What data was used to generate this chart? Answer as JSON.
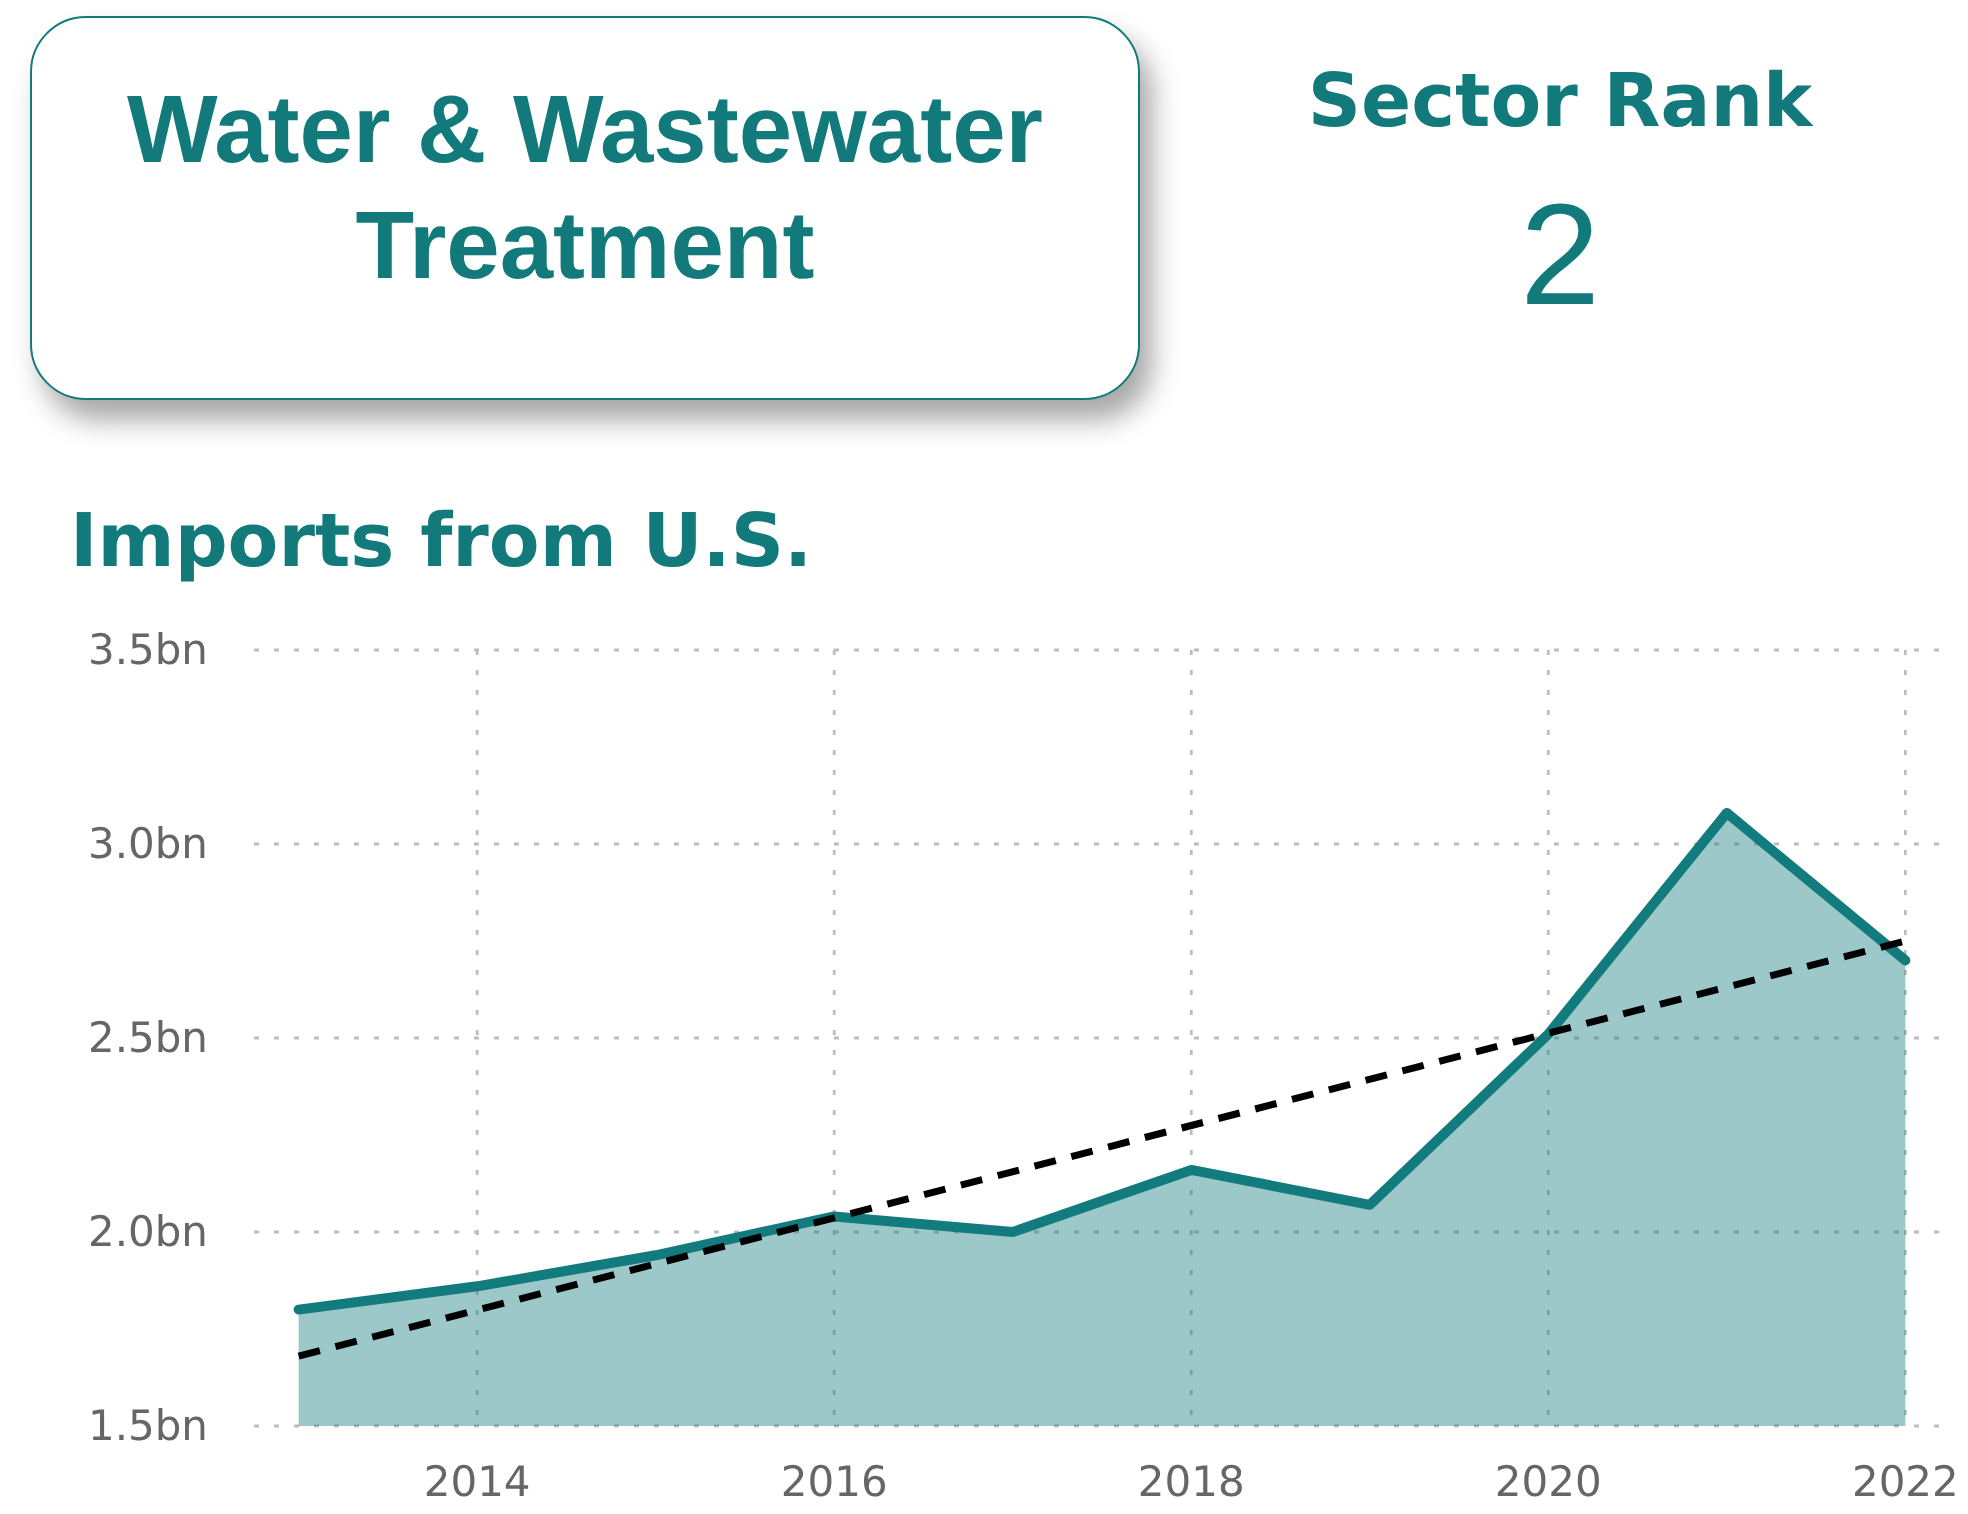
{
  "chart_data": [
    {
      "type": "other",
      "title": "Water & Wastewater Treatment"
    },
    {
      "type": "other",
      "title": "Sector Rank",
      "values": [
        2
      ],
      "data_labels": true
    },
    {
      "type": "area",
      "title": "Imports from U.S.",
      "x": [
        2013,
        2014,
        2015,
        2016,
        2017,
        2018,
        2019,
        2020,
        2021,
        2022
      ],
      "series": [
        {
          "type": "area",
          "color": "#127b7e",
          "values": [
            1.8,
            1.86,
            1.94,
            2.04,
            2.0,
            2.16,
            2.07,
            2.51,
            3.08,
            2.7
          ]
        },
        {
          "type": "line",
          "color": "#000000",
          "line_style": "dashed",
          "x": [
            2013,
            2022
          ],
          "values": [
            1.68,
            2.75
          ]
        }
      ],
      "xlim": [
        2012.75,
        2022.25
      ],
      "xticks": [
        2014,
        2016,
        2018,
        2020,
        2022
      ],
      "ylim": [
        1.5,
        3.5
      ],
      "yticks": [
        {
          "value": 1.5,
          "label": "1.5bn"
        },
        {
          "value": 2.0,
          "label": "2.0bn"
        },
        {
          "value": 2.5,
          "label": "2.5bn"
        },
        {
          "value": 3.0,
          "label": "3.0bn"
        },
        {
          "value": 3.5,
          "label": "3.5bn"
        }
      ],
      "grid": true
    }
  ]
}
